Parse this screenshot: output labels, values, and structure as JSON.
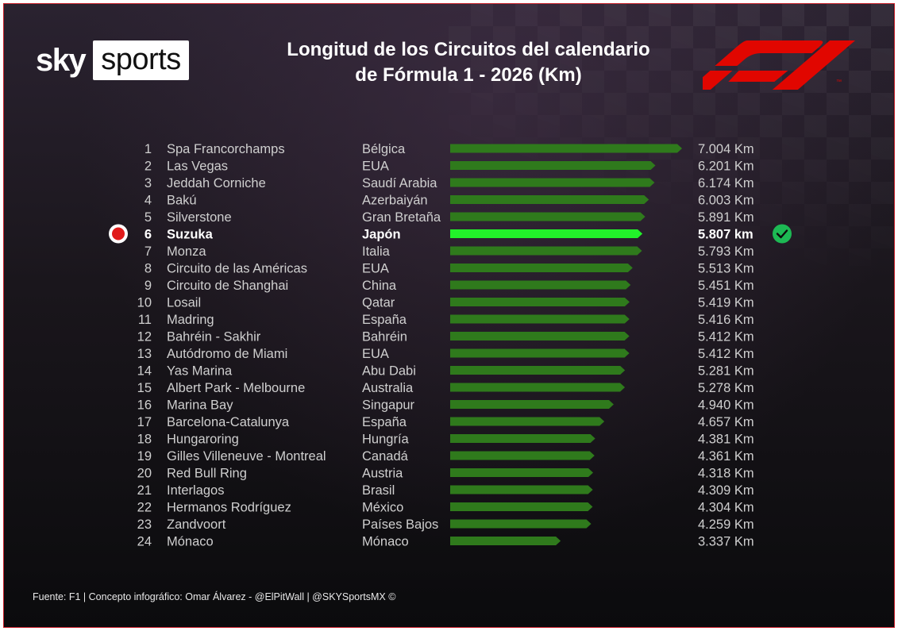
{
  "header": {
    "title_line1": "Longitud de los Circuitos del calendario",
    "title_line2": "de Fórmula 1 - 2026 (Km)",
    "brand_left_word1": "sky",
    "brand_left_word2": "sports"
  },
  "colors": {
    "bar_normal": "#2f7a1c",
    "bar_highlight": "#22f22a",
    "accent_red": "#e01b1b",
    "check_green": "#1db954"
  },
  "chart_data": {
    "type": "bar",
    "title": "Longitud de los Circuitos del calendario de Fórmula 1 - 2026 (Km)",
    "orientation": "horizontal",
    "highlight_rank": 6,
    "xlim": [
      0,
      7.004
    ],
    "rows": [
      {
        "rank": "1",
        "circuit": "Spa Francorchamps",
        "country": "Bélgica",
        "value": 7.004,
        "label": "7.004 Km"
      },
      {
        "rank": "2",
        "circuit": "Las Vegas",
        "country": "EUA",
        "value": 6.201,
        "label": "6.201 Km"
      },
      {
        "rank": "3",
        "circuit": "Jeddah Corniche",
        "country": "Saudí Arabia",
        "value": 6.174,
        "label": "6.174 Km"
      },
      {
        "rank": "4",
        "circuit": "Bakú",
        "country": "Azerbaiyán",
        "value": 6.003,
        "label": "6.003 Km"
      },
      {
        "rank": "5",
        "circuit": "Silverstone",
        "country": "Gran Bretaña",
        "value": 5.891,
        "label": "5.891 Km"
      },
      {
        "rank": "6",
        "circuit": "Suzuka",
        "country": "Japón",
        "value": 5.807,
        "label": "5.807 km"
      },
      {
        "rank": "7",
        "circuit": "Monza",
        "country": "Italia",
        "value": 5.793,
        "label": "5.793 Km"
      },
      {
        "rank": "8",
        "circuit": "Circuito de las Américas",
        "country": "EUA",
        "value": 5.513,
        "label": "5.513 Km"
      },
      {
        "rank": "9",
        "circuit": "Circuito de Shanghai",
        "country": "China",
        "value": 5.451,
        "label": "5.451 Km"
      },
      {
        "rank": "10",
        "circuit": "Losail",
        "country": "Qatar",
        "value": 5.419,
        "label": "5.419 Km"
      },
      {
        "rank": "11",
        "circuit": "Madring",
        "country": "España",
        "value": 5.416,
        "label": "5.416 Km"
      },
      {
        "rank": "12",
        "circuit": "Bahréin - Sakhir",
        "country": "Bahréin",
        "value": 5.412,
        "label": "5.412 Km"
      },
      {
        "rank": "13",
        "circuit": "Autódromo de Miami",
        "country": "EUA",
        "value": 5.412,
        "label": "5.412 Km"
      },
      {
        "rank": "14",
        "circuit": "Yas Marina",
        "country": "Abu Dabi",
        "value": 5.281,
        "label": "5.281 Km"
      },
      {
        "rank": "15",
        "circuit": "Albert Park - Melbourne",
        "country": "Australia",
        "value": 5.278,
        "label": "5.278 Km"
      },
      {
        "rank": "16",
        "circuit": "Marina Bay",
        "country": "Singapur",
        "value": 4.94,
        "label": "4.940 Km"
      },
      {
        "rank": "17",
        "circuit": "Barcelona-Catalunya",
        "country": "España",
        "value": 4.657,
        "label": "4.657 Km"
      },
      {
        "rank": "18",
        "circuit": "Hungaroring",
        "country": "Hungría",
        "value": 4.381,
        "label": "4.381 Km"
      },
      {
        "rank": "19",
        "circuit": "Gilles Villeneuve - Montreal",
        "country": "Canadá",
        "value": 4.361,
        "label": "4.361 Km"
      },
      {
        "rank": "20",
        "circuit": "Red Bull Ring",
        "country": "Austria",
        "value": 4.318,
        "label": "4.318 Km"
      },
      {
        "rank": "21",
        "circuit": "Interlagos",
        "country": "Brasil",
        "value": 4.309,
        "label": "4.309 Km"
      },
      {
        "rank": "22",
        "circuit": "Hermanos Rodríguez",
        "country": "México",
        "value": 4.304,
        "label": "4.304 Km"
      },
      {
        "rank": "23",
        "circuit": "Zandvoort",
        "country": "Países Bajos",
        "value": 4.259,
        "label": "4.259 Km"
      },
      {
        "rank": "24",
        "circuit": "Mónaco",
        "country": "Mónaco",
        "value": 3.337,
        "label": "3.337 Km"
      }
    ]
  },
  "footer": {
    "credit": "Fuente: F1 | Concepto infográfico: Omar Álvarez - @ElPitWall | @SKYSportsMX  ©"
  },
  "icons": {
    "highlight_marker": "red-dot-icon",
    "highlight_check": "check-circle-icon",
    "f1_logo": "f1-logo-icon",
    "f1_trademark": "™"
  }
}
